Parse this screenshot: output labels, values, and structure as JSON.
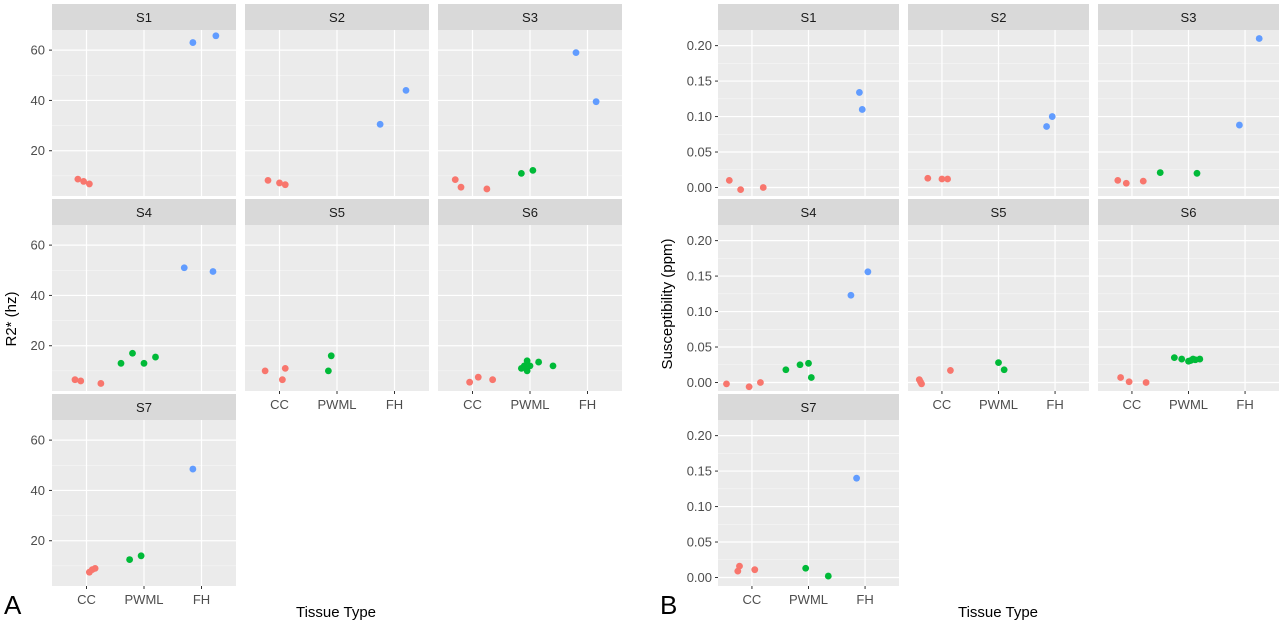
{
  "panels": [
    {
      "letter": "A",
      "x_title": "Tissue Type",
      "y_title": "R2* (hz)"
    },
    {
      "letter": "B",
      "x_title": "Tissue Type",
      "y_title": "Susceptibility (ppm)"
    }
  ],
  "colors": {
    "CC": "#F8766D",
    "PWML": "#00BA38",
    "FH": "#619CFF"
  },
  "chart_data": [
    {
      "type": "scatter",
      "title": "",
      "xlabel": "Tissue Type",
      "ylabel": "R2* (hz)",
      "categories": [
        "CC",
        "PWML",
        "FH"
      ],
      "ylim": [
        2,
        68
      ],
      "yticks": [
        20,
        40,
        60
      ],
      "grid": true,
      "facets": [
        {
          "label": "S1",
          "points": [
            {
              "group": "CC",
              "x": 0.85,
              "y": 8.7
            },
            {
              "group": "CC",
              "x": 0.95,
              "y": 7.8
            },
            {
              "group": "CC",
              "x": 1.05,
              "y": 6.8
            },
            {
              "group": "FH",
              "x": 2.85,
              "y": 63.0
            },
            {
              "group": "FH",
              "x": 3.25,
              "y": 65.7
            }
          ]
        },
        {
          "label": "S2",
          "points": [
            {
              "group": "CC",
              "x": 0.8,
              "y": 8.2
            },
            {
              "group": "CC",
              "x": 1.0,
              "y": 7.2
            },
            {
              "group": "CC",
              "x": 1.1,
              "y": 6.5
            },
            {
              "group": "FH",
              "x": 2.75,
              "y": 30.5
            },
            {
              "group": "FH",
              "x": 3.2,
              "y": 44.0
            }
          ]
        },
        {
          "label": "S3",
          "points": [
            {
              "group": "CC",
              "x": 0.7,
              "y": 8.5
            },
            {
              "group": "CC",
              "x": 0.8,
              "y": 5.5
            },
            {
              "group": "CC",
              "x": 1.25,
              "y": 4.8
            },
            {
              "group": "PWML",
              "x": 1.85,
              "y": 11.0
            },
            {
              "group": "PWML",
              "x": 2.05,
              "y": 12.2
            },
            {
              "group": "FH",
              "x": 2.8,
              "y": 59.0
            },
            {
              "group": "FH",
              "x": 3.15,
              "y": 39.5
            }
          ]
        },
        {
          "label": "S4",
          "points": [
            {
              "group": "CC",
              "x": 0.8,
              "y": 6.5
            },
            {
              "group": "CC",
              "x": 0.9,
              "y": 6.0
            },
            {
              "group": "CC",
              "x": 1.25,
              "y": 5.0
            },
            {
              "group": "PWML",
              "x": 1.6,
              "y": 13.0
            },
            {
              "group": "PWML",
              "x": 1.8,
              "y": 17.0
            },
            {
              "group": "PWML",
              "x": 2.0,
              "y": 13.0
            },
            {
              "group": "PWML",
              "x": 2.2,
              "y": 15.5
            },
            {
              "group": "FH",
              "x": 2.7,
              "y": 51.0
            },
            {
              "group": "FH",
              "x": 3.2,
              "y": 49.5
            }
          ]
        },
        {
          "label": "S5",
          "points": [
            {
              "group": "CC",
              "x": 0.75,
              "y": 10.0
            },
            {
              "group": "CC",
              "x": 1.05,
              "y": 6.5
            },
            {
              "group": "CC",
              "x": 1.1,
              "y": 11.0
            },
            {
              "group": "PWML",
              "x": 1.85,
              "y": 10.0
            },
            {
              "group": "PWML",
              "x": 1.9,
              "y": 16.0
            }
          ]
        },
        {
          "label": "S6",
          "points": [
            {
              "group": "CC",
              "x": 0.95,
              "y": 5.5
            },
            {
              "group": "CC",
              "x": 1.1,
              "y": 7.5
            },
            {
              "group": "CC",
              "x": 1.35,
              "y": 6.5
            },
            {
              "group": "PWML",
              "x": 1.85,
              "y": 11.0
            },
            {
              "group": "PWML",
              "x": 1.9,
              "y": 12.0
            },
            {
              "group": "PWML",
              "x": 1.95,
              "y": 14.0
            },
            {
              "group": "PWML",
              "x": 1.95,
              "y": 10.0
            },
            {
              "group": "PWML",
              "x": 2.0,
              "y": 12.0
            },
            {
              "group": "PWML",
              "x": 2.15,
              "y": 13.5
            },
            {
              "group": "PWML",
              "x": 2.4,
              "y": 12.0
            }
          ]
        },
        {
          "label": "S7",
          "points": [
            {
              "group": "CC",
              "x": 1.05,
              "y": 7.5
            },
            {
              "group": "CC",
              "x": 1.1,
              "y": 8.5
            },
            {
              "group": "CC",
              "x": 1.15,
              "y": 9.0
            },
            {
              "group": "PWML",
              "x": 1.75,
              "y": 12.5
            },
            {
              "group": "PWML",
              "x": 1.95,
              "y": 14.0
            },
            {
              "group": "FH",
              "x": 2.85,
              "y": 48.5
            }
          ]
        }
      ]
    },
    {
      "type": "scatter",
      "title": "",
      "xlabel": "Tissue Type",
      "ylabel": "Susceptibility (ppm)",
      "categories": [
        "CC",
        "PWML",
        "FH"
      ],
      "ylim": [
        -0.012,
        0.222
      ],
      "yticks": [
        "0.00",
        "0.05",
        "0.10",
        "0.15",
        "0.20"
      ],
      "grid": true,
      "facets": [
        {
          "label": "S1",
          "points": [
            {
              "group": "CC",
              "x": 0.6,
              "y": 0.01
            },
            {
              "group": "CC",
              "x": 0.8,
              "y": -0.003
            },
            {
              "group": "CC",
              "x": 1.2,
              "y": 0.0
            },
            {
              "group": "FH",
              "x": 2.9,
              "y": 0.134
            },
            {
              "group": "FH",
              "x": 2.95,
              "y": 0.11
            }
          ]
        },
        {
          "label": "S2",
          "points": [
            {
              "group": "CC",
              "x": 0.75,
              "y": 0.013
            },
            {
              "group": "CC",
              "x": 1.0,
              "y": 0.012
            },
            {
              "group": "CC",
              "x": 1.1,
              "y": 0.012
            },
            {
              "group": "FH",
              "x": 2.85,
              "y": 0.086
            },
            {
              "group": "FH",
              "x": 2.95,
              "y": 0.1
            }
          ]
        },
        {
          "label": "S3",
          "points": [
            {
              "group": "CC",
              "x": 0.75,
              "y": 0.01
            },
            {
              "group": "CC",
              "x": 0.9,
              "y": 0.006
            },
            {
              "group": "CC",
              "x": 1.2,
              "y": 0.009
            },
            {
              "group": "PWML",
              "x": 1.5,
              "y": 0.021
            },
            {
              "group": "PWML",
              "x": 2.15,
              "y": 0.02
            },
            {
              "group": "FH",
              "x": 2.9,
              "y": 0.088
            },
            {
              "group": "FH",
              "x": 3.25,
              "y": 0.21
            }
          ]
        },
        {
          "label": "S4",
          "points": [
            {
              "group": "CC",
              "x": 0.55,
              "y": -0.002
            },
            {
              "group": "CC",
              "x": 0.95,
              "y": -0.006
            },
            {
              "group": "CC",
              "x": 1.15,
              "y": 0.0
            },
            {
              "group": "PWML",
              "x": 1.6,
              "y": 0.018
            },
            {
              "group": "PWML",
              "x": 1.85,
              "y": 0.025
            },
            {
              "group": "PWML",
              "x": 2.0,
              "y": 0.027
            },
            {
              "group": "PWML",
              "x": 2.05,
              "y": 0.007
            },
            {
              "group": "FH",
              "x": 2.75,
              "y": 0.123
            },
            {
              "group": "FH",
              "x": 3.05,
              "y": 0.156
            }
          ]
        },
        {
          "label": "S5",
          "points": [
            {
              "group": "CC",
              "x": 0.6,
              "y": 0.004
            },
            {
              "group": "CC",
              "x": 0.62,
              "y": 0.001
            },
            {
              "group": "CC",
              "x": 0.64,
              "y": -0.002
            },
            {
              "group": "CC",
              "x": 1.15,
              "y": 0.017
            },
            {
              "group": "PWML",
              "x": 2.0,
              "y": 0.028
            },
            {
              "group": "PWML",
              "x": 2.1,
              "y": 0.018
            }
          ]
        },
        {
          "label": "S6",
          "points": [
            {
              "group": "CC",
              "x": 0.8,
              "y": 0.007
            },
            {
              "group": "CC",
              "x": 0.95,
              "y": 0.001
            },
            {
              "group": "CC",
              "x": 1.25,
              "y": 0.0
            },
            {
              "group": "PWML",
              "x": 1.75,
              "y": 0.035
            },
            {
              "group": "PWML",
              "x": 1.88,
              "y": 0.033
            },
            {
              "group": "PWML",
              "x": 2.0,
              "y": 0.03
            },
            {
              "group": "PWML",
              "x": 2.04,
              "y": 0.031
            },
            {
              "group": "PWML",
              "x": 2.08,
              "y": 0.033
            },
            {
              "group": "PWML",
              "x": 2.12,
              "y": 0.032
            },
            {
              "group": "PWML",
              "x": 2.2,
              "y": 0.033
            }
          ]
        },
        {
          "label": "S7",
          "points": [
            {
              "group": "CC",
              "x": 0.75,
              "y": 0.009
            },
            {
              "group": "CC",
              "x": 0.78,
              "y": 0.016
            },
            {
              "group": "CC",
              "x": 1.05,
              "y": 0.011
            },
            {
              "group": "PWML",
              "x": 1.95,
              "y": 0.013
            },
            {
              "group": "PWML",
              "x": 2.35,
              "y": 0.002
            },
            {
              "group": "FH",
              "x": 2.85,
              "y": 0.14
            }
          ]
        }
      ]
    }
  ]
}
